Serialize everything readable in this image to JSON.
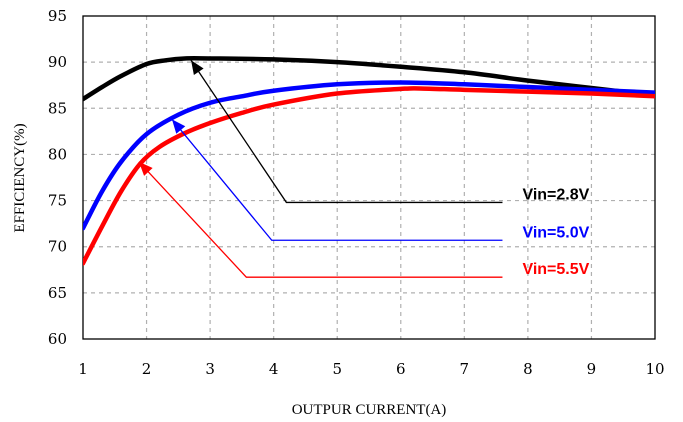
{
  "chart_data": {
    "type": "line",
    "title": "",
    "xlabel": "OUTPUR CURRENT(A)",
    "ylabel": "EFFICIENCY(%)",
    "xlim": [
      1,
      10
    ],
    "ylim": [
      60,
      95
    ],
    "xticks": [
      "1",
      "2",
      "3",
      "4",
      "5",
      "6",
      "7",
      "8",
      "9",
      "10"
    ],
    "yticks": [
      "60",
      "65",
      "70",
      "75",
      "80",
      "85",
      "90",
      "95"
    ],
    "grid": true,
    "series": [
      {
        "name": "Vin=2.8V",
        "color": "#000000",
        "x": [
          1,
          1.3,
          1.6,
          2.0,
          2.3,
          2.6,
          3,
          4,
          5,
          6,
          7,
          8,
          9,
          10
        ],
        "y": [
          86.0,
          87.3,
          88.5,
          89.8,
          90.2,
          90.4,
          90.4,
          90.3,
          90.0,
          89.5,
          88.9,
          88.0,
          87.2,
          86.4
        ]
      },
      {
        "name": "Vin=5.0V",
        "color": "#0000ff",
        "x": [
          1,
          1.3,
          1.6,
          2.0,
          2.5,
          3,
          3.5,
          4,
          5,
          6,
          7,
          8,
          9,
          10
        ],
        "y": [
          72.0,
          76.0,
          79.2,
          82.2,
          84.3,
          85.6,
          86.3,
          86.9,
          87.6,
          87.8,
          87.6,
          87.3,
          87.0,
          86.7
        ]
      },
      {
        "name": "Vin=5.5V",
        "color": "#ff0000",
        "x": [
          1,
          1.3,
          1.6,
          1.9,
          2.2,
          2.6,
          3,
          3.5,
          4,
          5,
          6,
          6.3,
          7,
          8,
          9,
          10
        ],
        "y": [
          68.2,
          72.2,
          76.0,
          79.0,
          80.8,
          82.3,
          83.4,
          84.5,
          85.4,
          86.6,
          87.1,
          87.15,
          87.0,
          86.8,
          86.6,
          86.3
        ]
      }
    ],
    "annotations": [
      {
        "text": "Vin=2.8V",
        "series": 0,
        "tip": [
          2.7,
          90.2
        ],
        "elbow": [
          4.2,
          74.8
        ],
        "end": [
          7.6,
          74.8
        ]
      },
      {
        "text": "Vin=5.0V",
        "series": 1,
        "tip": [
          2.4,
          83.8
        ],
        "elbow": [
          3.97,
          70.7
        ],
        "end": [
          7.6,
          70.7
        ]
      },
      {
        "text": "Vin=5.5V",
        "series": 2,
        "tip": [
          1.88,
          79.2
        ],
        "elbow": [
          3.57,
          66.7
        ],
        "end": [
          7.6,
          66.7
        ]
      }
    ]
  }
}
